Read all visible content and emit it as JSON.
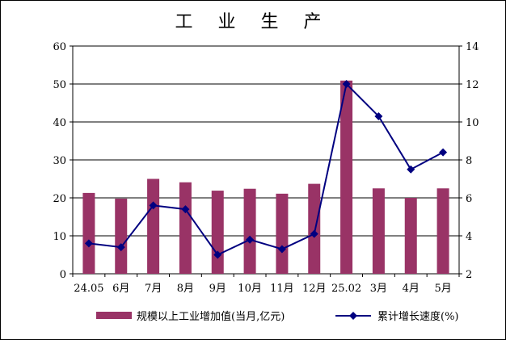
{
  "chart_data": {
    "type": "bar+line",
    "title": "工 业 生 产",
    "categories": [
      "24.05",
      "6月",
      "7月",
      "8月",
      "9月",
      "10月",
      "11月",
      "12月",
      "25.02",
      "3月",
      "4月",
      "5月"
    ],
    "series": [
      {
        "name": "规模以上工业增加值(当月,亿元)",
        "type": "bar",
        "axis": "left",
        "color": "#993366",
        "values": [
          21.3,
          19.8,
          25.0,
          24.1,
          21.9,
          22.4,
          21.1,
          23.7,
          50.9,
          22.5,
          20.0,
          22.5
        ]
      },
      {
        "name": "累计增长速度(%)",
        "type": "line",
        "axis": "right",
        "color": "#000080",
        "marker": "diamond",
        "values": [
          3.6,
          3.4,
          5.6,
          5.4,
          3.0,
          3.8,
          3.3,
          4.1,
          12.0,
          10.3,
          7.5,
          8.4
        ]
      }
    ],
    "y_left": {
      "min": 0,
      "max": 60,
      "ticks": [
        0,
        10,
        20,
        30,
        40,
        50,
        60
      ]
    },
    "y_right": {
      "min": 2,
      "max": 14,
      "ticks": [
        2,
        4,
        6,
        8,
        10,
        12,
        14
      ]
    },
    "grid": true,
    "legend_position": "bottom"
  }
}
